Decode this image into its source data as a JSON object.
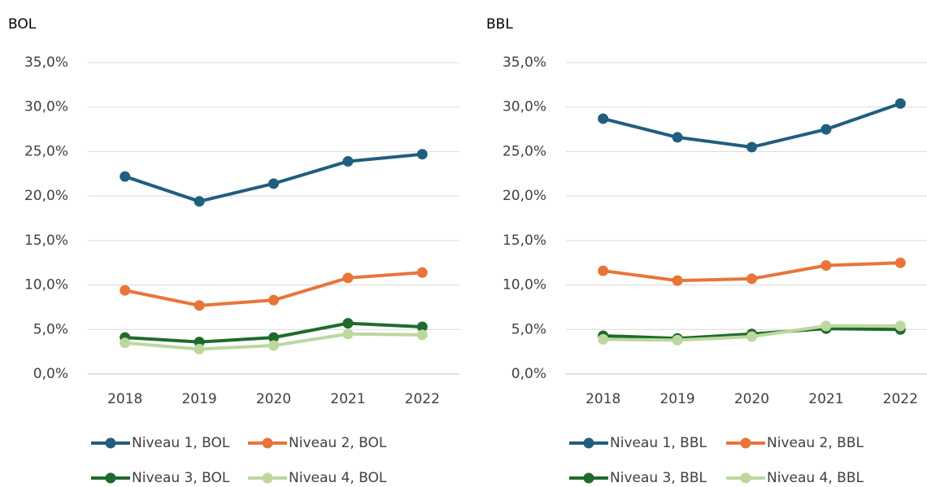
{
  "chart_data": [
    {
      "type": "line",
      "title": "BOL",
      "categories": [
        "2018",
        "2019",
        "2020",
        "2021",
        "2022"
      ],
      "series": [
        {
          "name": "Niveau 1, BOL",
          "color": "#215e7e",
          "values": [
            22.2,
            19.4,
            21.4,
            23.9,
            24.7
          ]
        },
        {
          "name": "Niveau 2, BOL",
          "color": "#e9743a",
          "values": [
            9.4,
            7.7,
            8.3,
            10.8,
            11.4
          ]
        },
        {
          "name": "Niveau 3, BOL",
          "color": "#1f6b2d",
          "values": [
            4.1,
            3.6,
            4.1,
            5.7,
            5.3
          ]
        },
        {
          "name": "Niveau 4, BOL",
          "color": "#bcd89e",
          "values": [
            3.5,
            2.8,
            3.2,
            4.5,
            4.4
          ]
        }
      ],
      "ylim": [
        0,
        35
      ],
      "yticks": [
        {
          "value": 0,
          "label": "0,0%"
        },
        {
          "value": 5,
          "label": "5,0%"
        },
        {
          "value": 10,
          "label": "10,0%"
        },
        {
          "value": 15,
          "label": "15,0%"
        },
        {
          "value": 20,
          "label": "20,0%"
        },
        {
          "value": 25,
          "label": "25,0%"
        },
        {
          "value": 30,
          "label": "30,0%"
        },
        {
          "value": 35,
          "label": "35,0%"
        }
      ],
      "grid": true,
      "legend": "bottom"
    },
    {
      "type": "line",
      "title": "BBL",
      "categories": [
        "2018",
        "2019",
        "2020",
        "2021",
        "2022"
      ],
      "series": [
        {
          "name": "Niveau 1, BBL",
          "color": "#215e7e",
          "values": [
            28.7,
            26.6,
            25.5,
            27.5,
            30.4
          ]
        },
        {
          "name": "Niveau 2, BBL",
          "color": "#e9743a",
          "values": [
            11.6,
            10.5,
            10.7,
            12.2,
            12.5
          ]
        },
        {
          "name": "Niveau 3, BBL",
          "color": "#1f6b2d",
          "values": [
            4.3,
            4.0,
            4.5,
            5.1,
            5.0
          ]
        },
        {
          "name": "Niveau 4, BBL",
          "color": "#bcd89e",
          "values": [
            3.9,
            3.8,
            4.2,
            5.4,
            5.4
          ]
        }
      ],
      "ylim": [
        0,
        35
      ],
      "yticks": [
        {
          "value": 0,
          "label": "0,0%"
        },
        {
          "value": 5,
          "label": "5,0%"
        },
        {
          "value": 10,
          "label": "10,0%"
        },
        {
          "value": 15,
          "label": "15,0%"
        },
        {
          "value": 20,
          "label": "20,0%"
        },
        {
          "value": 25,
          "label": "25,0%"
        },
        {
          "value": 30,
          "label": "30,0%"
        },
        {
          "value": 35,
          "label": "35,0%"
        }
      ],
      "grid": true,
      "legend": "bottom"
    }
  ]
}
